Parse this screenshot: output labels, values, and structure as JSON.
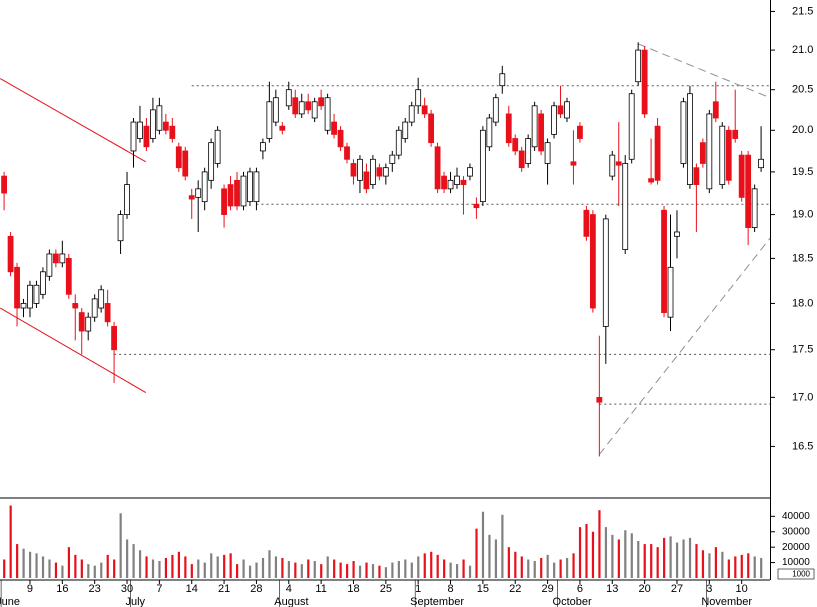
{
  "chart_data": {
    "type": "candlestick",
    "categories": [
      null,
      null,
      null,
      null,
      "9",
      null,
      null,
      null,
      null,
      "16",
      null,
      null,
      null,
      null,
      "23",
      null,
      null,
      null,
      null,
      "30",
      null,
      null,
      null,
      null,
      "7",
      null,
      null,
      null,
      null,
      "14",
      null,
      null,
      null,
      null,
      "21",
      null,
      null,
      null,
      null,
      "28",
      null,
      null,
      null,
      null,
      "4",
      null,
      null,
      null,
      null,
      "11",
      null,
      null,
      null,
      null,
      "18",
      null,
      null,
      null,
      null,
      "25",
      null,
      null,
      null,
      null,
      "1",
      null,
      null,
      null,
      null,
      "8",
      null,
      null,
      null,
      null,
      "15",
      null,
      null,
      null,
      null,
      "22",
      null,
      null,
      null,
      null,
      "29",
      null,
      null,
      null,
      null,
      "6",
      null,
      null,
      null,
      null,
      "13",
      null,
      null,
      null,
      null,
      "20",
      null,
      null,
      null,
      null,
      "27",
      null,
      null,
      null,
      null,
      "3",
      null,
      null,
      null,
      null,
      "10",
      null,
      null,
      null
    ],
    "months": [
      "June",
      null,
      null,
      null,
      null,
      null,
      null,
      null,
      null,
      null,
      null,
      null,
      null,
      null,
      null,
      null,
      null,
      null,
      null,
      null,
      "July",
      null,
      null,
      null,
      null,
      null,
      null,
      null,
      null,
      null,
      null,
      null,
      null,
      null,
      null,
      null,
      null,
      null,
      null,
      null,
      null,
      null,
      null,
      "August",
      null,
      null,
      null,
      null,
      null,
      null,
      null,
      null,
      null,
      null,
      null,
      null,
      null,
      null,
      null,
      null,
      null,
      null,
      null,
      null,
      "September",
      null,
      null,
      null,
      null,
      null,
      null,
      null,
      null,
      null,
      null,
      null,
      null,
      null,
      null,
      null,
      null,
      null,
      null,
      null,
      null,
      null,
      "October",
      null,
      null,
      null,
      null,
      null,
      null,
      null,
      null,
      null,
      null,
      null,
      null,
      null,
      null,
      null,
      null,
      null,
      null,
      null,
      null,
      null,
      null,
      "November",
      null,
      null,
      null,
      null,
      null,
      null,
      null,
      null
    ],
    "open": [
      19.45,
      18.75,
      18.4,
      17.95,
      17.95,
      18.0,
      18.1,
      18.3,
      18.55,
      18.45,
      18.5,
      18.0,
      17.9,
      17.7,
      17.85,
      17.95,
      18.0,
      17.75,
      18.7,
      19.0,
      19.75,
      19.9,
      20.05,
      19.9,
      20.0,
      20.1,
      20.05,
      19.8,
      19.75,
      19.22,
      19.2,
      19.15,
      19.4,
      19.6,
      19.3,
      19.35,
      19.4,
      19.1,
      19.15,
      19.15,
      19.75,
      19.9,
      20.1,
      20.05,
      20.3,
      20.4,
      20.2,
      20.35,
      20.15,
      20.4,
      20.0,
      20.1,
      20.0,
      19.8,
      19.6,
      19.4,
      19.5,
      19.35,
      19.55,
      19.45,
      19.6,
      19.7,
      19.9,
      20.1,
      20.3,
      20.3,
      20.2,
      19.8,
      19.45,
      19.3,
      19.35,
      19.4,
      19.45,
      19.12,
      19.15,
      19.8,
      20.1,
      20.55,
      20.2,
      19.9,
      19.75,
      19.6,
      19.8,
      20.2,
      19.6,
      19.95,
      20.3,
      20.15,
      19.62,
      20.05,
      19.05,
      19.0,
      17.0,
      17.75,
      19.45,
      19.62,
      18.6,
      19.65,
      20.6,
      21.0,
      19.42,
      20.05,
      19.05,
      17.85,
      18.75,
      19.6,
      19.35,
      19.55,
      19.85,
      19.3,
      20.35,
      19.35,
      20.0,
      20.0,
      19.7,
      19.7,
      18.85,
      19.55
    ],
    "high": [
      19.5,
      18.8,
      18.45,
      18.05,
      18.25,
      18.25,
      18.4,
      18.6,
      18.6,
      18.7,
      18.55,
      18.1,
      17.95,
      17.9,
      18.1,
      18.2,
      18.15,
      17.8,
      19.05,
      19.5,
      20.15,
      20.3,
      20.15,
      20.4,
      20.4,
      20.2,
      20.15,
      19.85,
      19.8,
      19.3,
      19.4,
      19.55,
      19.9,
      20.05,
      19.35,
      19.45,
      19.5,
      19.5,
      19.55,
      19.55,
      19.9,
      20.6,
      20.5,
      20.1,
      20.6,
      20.5,
      20.45,
      20.45,
      20.4,
      20.5,
      20.45,
      20.2,
      20.05,
      19.85,
      19.65,
      19.7,
      19.6,
      19.7,
      19.6,
      19.6,
      19.75,
      20.05,
      20.15,
      20.35,
      20.65,
      20.4,
      20.25,
      19.85,
      19.5,
      19.5,
      19.55,
      19.45,
      19.6,
      19.2,
      20.05,
      20.2,
      20.45,
      20.8,
      20.3,
      19.95,
      19.8,
      19.95,
      20.35,
      20.25,
      19.9,
      20.35,
      20.55,
      20.4,
      20.0,
      20.1,
      19.1,
      19.05,
      17.65,
      19.0,
      19.75,
      20.1,
      19.7,
      20.5,
      21.1,
      21.05,
      19.9,
      20.15,
      19.1,
      19.0,
      19.05,
      20.4,
      20.55,
      19.6,
      19.9,
      20.25,
      20.6,
      20.1,
      20.05,
      20.5,
      19.75,
      19.75,
      19.35,
      20.05
    ],
    "low": [
      19.05,
      18.3,
      17.75,
      17.85,
      17.85,
      17.95,
      18.05,
      18.25,
      18.4,
      18.4,
      18.05,
      17.6,
      17.45,
      17.6,
      17.8,
      17.9,
      17.75,
      17.15,
      18.55,
      18.95,
      19.55,
      19.85,
      19.75,
      19.85,
      19.95,
      19.95,
      19.85,
      19.5,
      19.4,
      18.95,
      18.8,
      19.05,
      19.3,
      19.55,
      18.85,
      19.05,
      19.05,
      19.05,
      19.1,
      19.05,
      19.65,
      19.85,
      20.05,
      19.95,
      20.25,
      20.15,
      20.15,
      20.2,
      20.1,
      20.25,
      19.95,
      19.9,
      19.75,
      19.6,
      19.35,
      19.25,
      19.25,
      19.3,
      19.4,
      19.35,
      19.5,
      19.65,
      19.85,
      20.05,
      20.2,
      20.15,
      19.8,
      19.25,
      19.25,
      19.25,
      19.3,
      19.0,
      19.4,
      18.95,
      19.1,
      19.75,
      20.05,
      20.45,
      19.8,
      19.7,
      19.5,
      19.55,
      19.75,
      19.7,
      19.35,
      19.9,
      20.15,
      20.1,
      19.35,
      19.85,
      18.7,
      17.9,
      16.4,
      17.35,
      19.4,
      19.1,
      18.55,
      19.6,
      20.55,
      20.15,
      19.35,
      19.35,
      17.85,
      17.7,
      18.5,
      19.55,
      19.3,
      18.8,
      19.55,
      19.25,
      20.1,
      19.3,
      19.35,
      19.85,
      19.15,
      18.65,
      18.8,
      19.5
    ],
    "close": [
      19.25,
      18.35,
      17.95,
      18.0,
      18.2,
      18.2,
      18.35,
      18.55,
      18.45,
      18.55,
      18.1,
      17.95,
      17.7,
      17.85,
      18.05,
      18.15,
      17.8,
      17.5,
      19.0,
      19.35,
      20.1,
      20.1,
      19.8,
      20.25,
      20.3,
      20.0,
      19.9,
      19.55,
      19.45,
      19.18,
      19.3,
      19.5,
      19.85,
      20.0,
      19.0,
      19.1,
      19.1,
      19.45,
      19.5,
      19.5,
      19.85,
      20.35,
      20.4,
      20.0,
      20.5,
      20.2,
      20.35,
      20.25,
      20.35,
      20.3,
      20.4,
      19.95,
      19.8,
      19.65,
      19.45,
      19.65,
      19.3,
      19.65,
      19.45,
      19.55,
      19.7,
      20.0,
      20.1,
      20.3,
      20.5,
      20.2,
      19.85,
      19.3,
      19.3,
      19.4,
      19.45,
      19.35,
      19.55,
      19.08,
      20.0,
      20.15,
      20.4,
      20.7,
      19.85,
      19.75,
      19.55,
      19.9,
      20.3,
      19.75,
      19.85,
      20.3,
      20.2,
      20.35,
      19.58,
      19.9,
      18.75,
      17.95,
      16.95,
      18.95,
      19.7,
      19.58,
      19.6,
      20.45,
      21.0,
      20.2,
      19.38,
      19.4,
      17.9,
      18.4,
      18.8,
      20.35,
      20.45,
      19.35,
      19.6,
      20.2,
      20.15,
      20.05,
      19.4,
      19.9,
      19.2,
      18.85,
      19.3,
      19.65
    ],
    "volume": [
      12000,
      47000,
      22000,
      19000,
      17000,
      16000,
      14000,
      12000,
      10000,
      8000,
      20000,
      15000,
      12000,
      9000,
      8000,
      10000,
      15000,
      12000,
      42000,
      25000,
      22000,
      18000,
      14000,
      12000,
      11000,
      13000,
      15000,
      17000,
      14000,
      9000,
      12000,
      10000,
      16000,
      14000,
      15000,
      16000,
      9000,
      12000,
      8000,
      10000,
      13000,
      18000,
      14000,
      13000,
      11000,
      10000,
      9000,
      12000,
      11000,
      9000,
      14000,
      12000,
      10000,
      9000,
      11000,
      8000,
      10000,
      9000,
      8000,
      7000,
      10000,
      11000,
      12000,
      10000,
      14000,
      16000,
      17000,
      15000,
      12000,
      10000,
      9000,
      12000,
      8000,
      32000,
      43000,
      28000,
      25000,
      41000,
      20000,
      17000,
      14000,
      12000,
      11000,
      13000,
      15000,
      10000,
      12000,
      13000,
      16000,
      33000,
      35000,
      30000,
      44000,
      33000,
      28000,
      25000,
      31000,
      29000,
      24000,
      22000,
      22000,
      20000,
      26000,
      27000,
      23000,
      25000,
      26000,
      22000,
      18000,
      16000,
      20000,
      17000,
      12000,
      14000,
      15000,
      16000,
      14000,
      13000
    ],
    "up_color": "#ffffff",
    "down_color": "#e8101a",
    "volume_up_color": "#808080",
    "volume_down_color": "#e8101a",
    "log_scale": true,
    "ylim": [
      16.0,
      21.65
    ],
    "yticks": [
      16.5,
      {
        "value": 17,
        "label": "17.0"
      },
      17.5,
      {
        "value": 18,
        "label": "18.0"
      },
      18.5,
      {
        "value": 19,
        "label": "19.0"
      },
      19.5,
      {
        "value": 20,
        "label": "20.0"
      },
      20.5,
      {
        "value": 21,
        "label": "21.0"
      },
      21.5
    ],
    "volume_ylim": [
      0,
      48000
    ],
    "volume_yticks": [
      10000,
      20000,
      30000,
      40000
    ],
    "volume_unit_label": "1000",
    "levels": [
      {
        "value": 20.55,
        "from": 29
      },
      {
        "value": 19.12,
        "from": 39
      },
      {
        "value": 17.45,
        "from": 17
      },
      {
        "value": 16.93,
        "from": 92
      }
    ],
    "trendlines": [
      {
        "x": [
          -0.6,
          21.9
        ],
        "y": [
          20.64,
          19.62
        ],
        "color": "#e8101a",
        "dashed": false
      },
      {
        "x": [
          -0.6,
          21.9
        ],
        "y": [
          17.95,
          17.05
        ],
        "color": "#e8101a",
        "dashed": false
      },
      {
        "x": [
          98,
          118.4
        ],
        "y": [
          21.08,
          20.4
        ],
        "color": "#8a9099",
        "dashed": true
      },
      {
        "x": [
          92,
          118.4
        ],
        "y": [
          16.42,
          18.73
        ],
        "color": "#8a9099",
        "dashed": true
      }
    ]
  }
}
